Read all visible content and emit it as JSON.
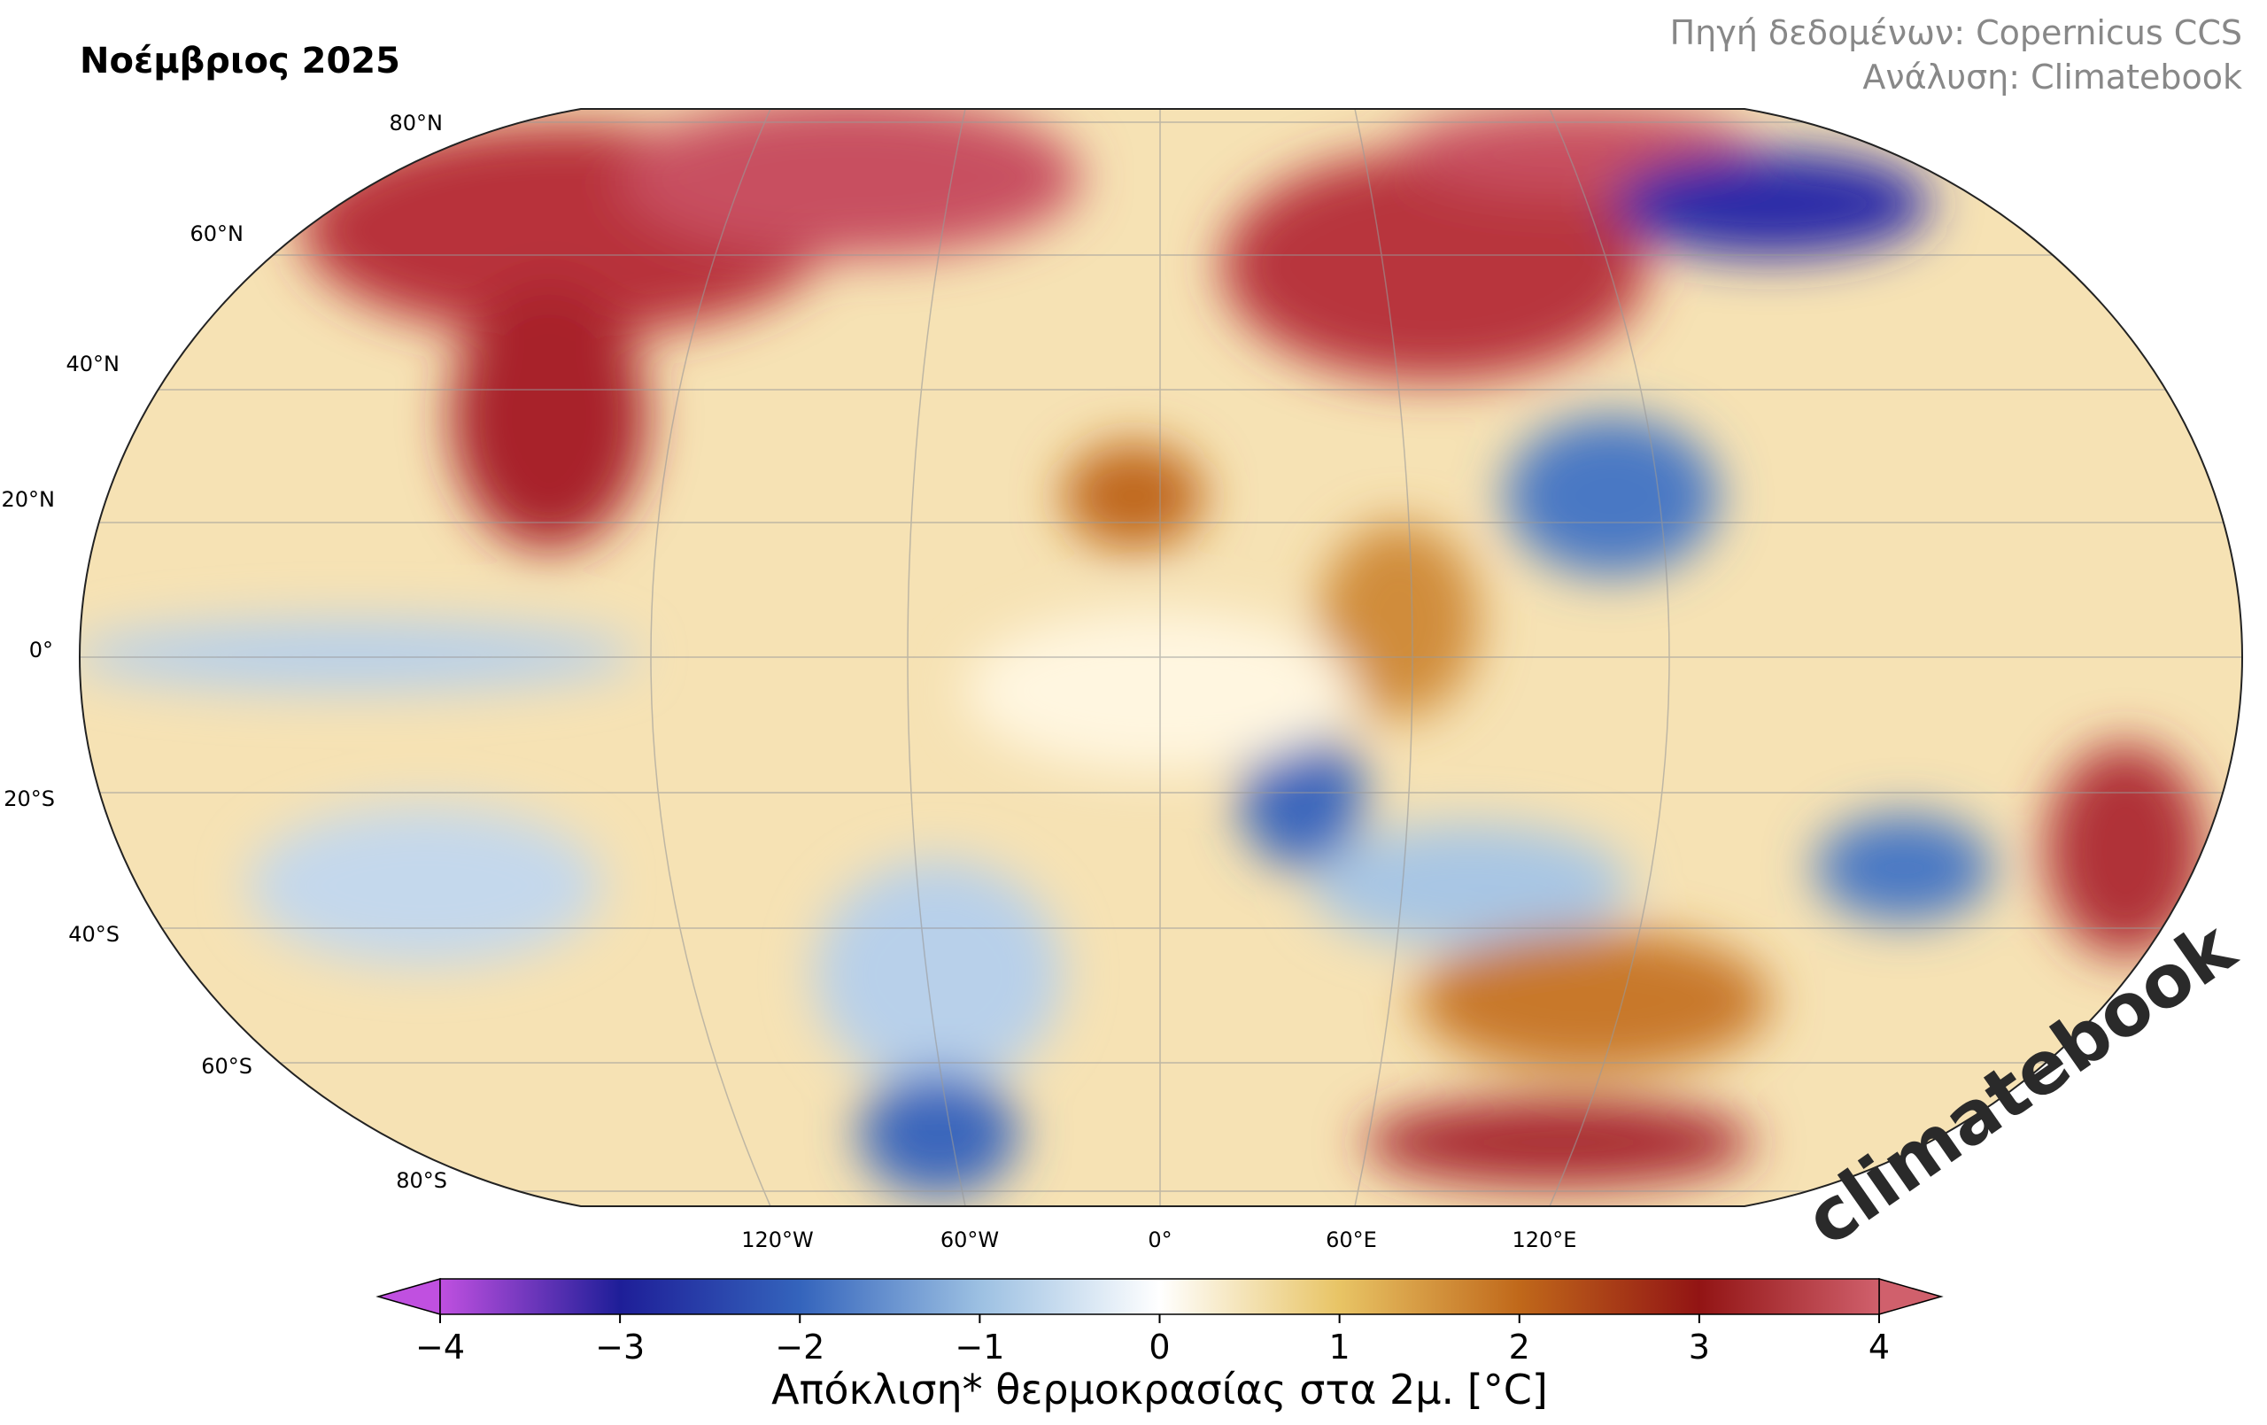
{
  "title": "Νοέμβριος 2025",
  "source": [
    "Πηγή δεδομένων: Copernicus CCS",
    "Ανάλυση: Climatebook"
  ],
  "lat_labels": [
    "80°N",
    "60°N",
    "40°N",
    "20°N",
    "0°",
    "20°S",
    "40°S",
    "60°S",
    "80°S"
  ],
  "lon_labels": [
    "120°W",
    "60°W",
    "0°",
    "60°E",
    "120°E"
  ],
  "colorbar": {
    "lim": [
      -4,
      4
    ],
    "ticks": [
      {
        "value": -4,
        "label": "−4"
      },
      {
        "value": -3,
        "label": "−3"
      },
      {
        "value": -2,
        "label": "−2"
      },
      {
        "value": -1,
        "label": "−1"
      },
      0,
      1,
      2,
      3,
      4
    ],
    "colors": [
      "#c050e0",
      "#1e1e98",
      "#3464bc",
      "#9cc0e2",
      "#ffffff",
      "#e8c465",
      "#c0681a",
      "#921414",
      "#d0606c"
    ],
    "label": "Απόκλιση* θερμοκρασίας στα 2μ. [°C]"
  },
  "watermark": "climatebook"
}
